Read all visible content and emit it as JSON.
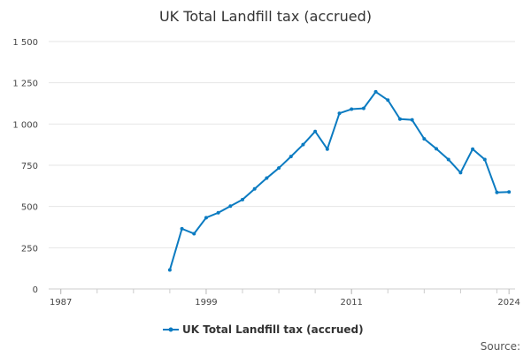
{
  "chart_data": {
    "type": "line",
    "title": "UK Total Landfill tax (accrued)",
    "xlabel": "",
    "ylabel": "",
    "xlim": [
      1986,
      2024.5
    ],
    "ylim": [
      0,
      1500
    ],
    "yticks": [
      0,
      250,
      500,
      750,
      1000,
      1250,
      1500
    ],
    "ytick_labels": [
      "0",
      "250",
      "500",
      "750",
      "1 000",
      "1 250",
      "1 500"
    ],
    "xticks": [
      1987,
      1999,
      2011,
      2024
    ],
    "xtick_labels": [
      "1987",
      "1999",
      "2011",
      "2024"
    ],
    "grid": true,
    "legend": "bottom-center",
    "series": [
      {
        "name": "UK Total Landfill tax (accrued)",
        "color": "#0b7bc1",
        "x": [
          1996,
          1997,
          1998,
          1999,
          2000,
          2001,
          2002,
          2003,
          2004,
          2005,
          2006,
          2007,
          2008,
          2009,
          2010,
          2011,
          2012,
          2013,
          2014,
          2015,
          2016,
          2017,
          2018,
          2019,
          2020,
          2021,
          2022,
          2023,
          2024
        ],
        "values": [
          115,
          365,
          335,
          432,
          462,
          502,
          542,
          607,
          672,
          733,
          803,
          875,
          955,
          848,
          1065,
          1090,
          1095,
          1195,
          1145,
          1030,
          1025,
          910,
          850,
          785,
          705,
          848,
          785,
          585,
          588
        ]
      }
    ],
    "source_label": "Source:"
  }
}
